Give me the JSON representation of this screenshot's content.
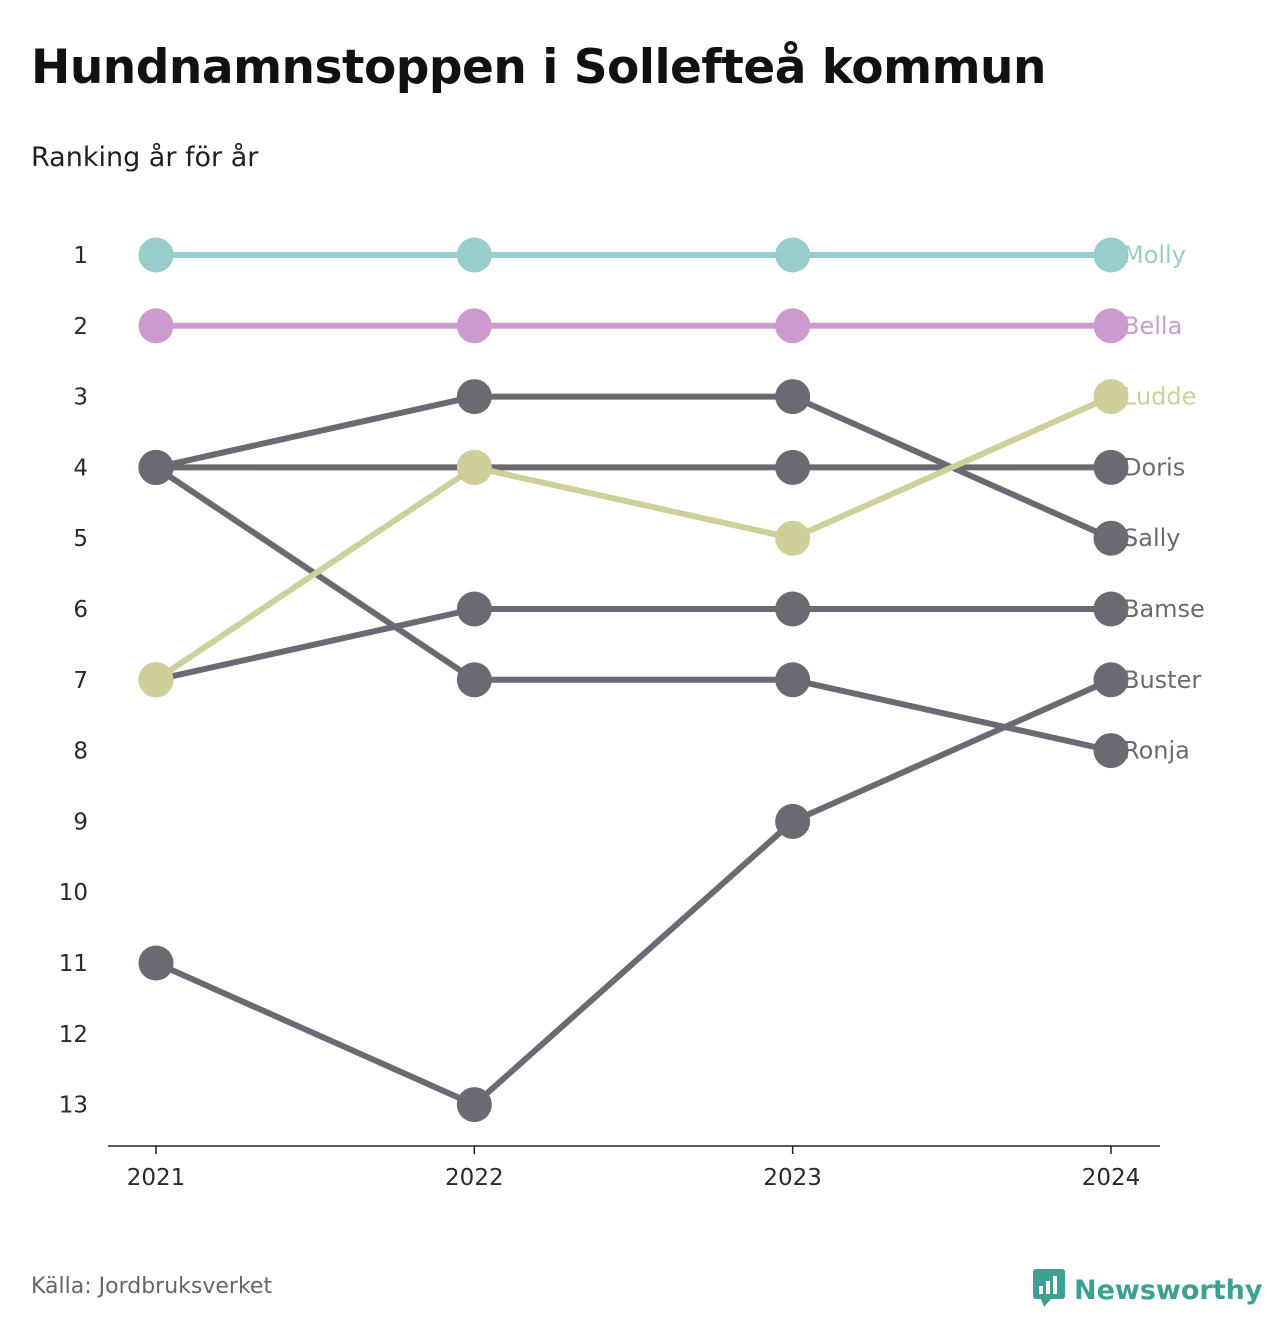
{
  "header": {
    "title": "Hundnamnstoppen i Sollefteå kommun",
    "subtitle": "Ranking år för år"
  },
  "footer": {
    "source": "Källa: Jordbruksverket",
    "brand": "Newsworthy",
    "brand_icon": "bar-chart-speech-bubble-icon",
    "brand_color": "#3e9f93"
  },
  "chart_data": {
    "type": "line",
    "subtype": "bump",
    "x": [
      "2021",
      "2022",
      "2023",
      "2024"
    ],
    "y_ticks": [
      1,
      2,
      3,
      4,
      5,
      6,
      7,
      8,
      9,
      10,
      11,
      12,
      13
    ],
    "ylim": [
      1,
      13
    ],
    "y_reversed": true,
    "grid": false,
    "series": [
      {
        "name": "Molly",
        "values": [
          1,
          1,
          1,
          1
        ],
        "color": "#98cdcc"
      },
      {
        "name": "Bella",
        "values": [
          2,
          2,
          2,
          2
        ],
        "color": "#cd9acf"
      },
      {
        "name": "Doris",
        "values": [
          4,
          4,
          4,
          4
        ],
        "color": "#6b6a72"
      },
      {
        "name": "Sally",
        "values": [
          4,
          3,
          3,
          5
        ],
        "color": "#6b6a72"
      },
      {
        "name": "Bamse",
        "values": [
          7,
          6,
          6,
          6
        ],
        "color": "#6b6a72"
      },
      {
        "name": "Buster",
        "values": [
          11,
          13,
          9,
          7
        ],
        "color": "#6b6a72"
      },
      {
        "name": "Ronja",
        "values": [
          4,
          7,
          7,
          8
        ],
        "color": "#6b6a72"
      },
      {
        "name": "Ludde",
        "values": [
          7,
          4,
          5,
          3
        ],
        "color": "#cfcf9a"
      }
    ]
  }
}
